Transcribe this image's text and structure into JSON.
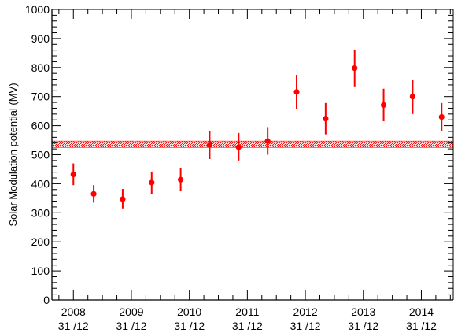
{
  "chart_data": {
    "type": "scatter",
    "title": "",
    "xlabel": "",
    "ylabel": "Solar Modulation potential (MV)",
    "ylim": [
      0,
      1000
    ],
    "yticks": [
      0,
      100,
      200,
      300,
      400,
      500,
      600,
      700,
      800,
      900,
      1000
    ],
    "xticks": [
      {
        "year": "2008",
        "date": "31 /12"
      },
      {
        "year": "2009",
        "date": "31 /12"
      },
      {
        "year": "2010",
        "date": "31 /12"
      },
      {
        "year": "2011",
        "date": "31 /12"
      },
      {
        "year": "2012",
        "date": "31 /12"
      },
      {
        "year": "2013",
        "date": "31 /12"
      },
      {
        "year": "2014",
        "date": "31 /12"
      }
    ],
    "grid": false,
    "legend": "none",
    "points": [
      {
        "x": 2008.0,
        "y": 432,
        "err_low": 395,
        "err_high": 470
      },
      {
        "x": 2008.35,
        "y": 365,
        "err_low": 335,
        "err_high": 395
      },
      {
        "x": 2008.85,
        "y": 347,
        "err_low": 315,
        "err_high": 382
      },
      {
        "x": 2009.35,
        "y": 404,
        "err_low": 365,
        "err_high": 442
      },
      {
        "x": 2009.85,
        "y": 414,
        "err_low": 375,
        "err_high": 455
      },
      {
        "x": 2010.35,
        "y": 533,
        "err_low": 485,
        "err_high": 582
      },
      {
        "x": 2010.85,
        "y": 526,
        "err_low": 480,
        "err_high": 575
      },
      {
        "x": 2011.35,
        "y": 547,
        "err_low": 500,
        "err_high": 595
      },
      {
        "x": 2011.85,
        "y": 716,
        "err_low": 657,
        "err_high": 775
      },
      {
        "x": 2012.35,
        "y": 624,
        "err_low": 570,
        "err_high": 678
      },
      {
        "x": 2012.85,
        "y": 798,
        "err_low": 735,
        "err_high": 862
      },
      {
        "x": 2013.35,
        "y": 671,
        "err_low": 615,
        "err_high": 727
      },
      {
        "x": 2013.85,
        "y": 700,
        "err_low": 640,
        "err_high": 758
      },
      {
        "x": 2014.35,
        "y": 630,
        "err_low": 580,
        "err_high": 678
      }
    ],
    "band": {
      "y_low": 525,
      "y_high": 547
    },
    "colors": {
      "points": "#ff0000",
      "band": "#ff0000",
      "axis": "#000000"
    }
  }
}
